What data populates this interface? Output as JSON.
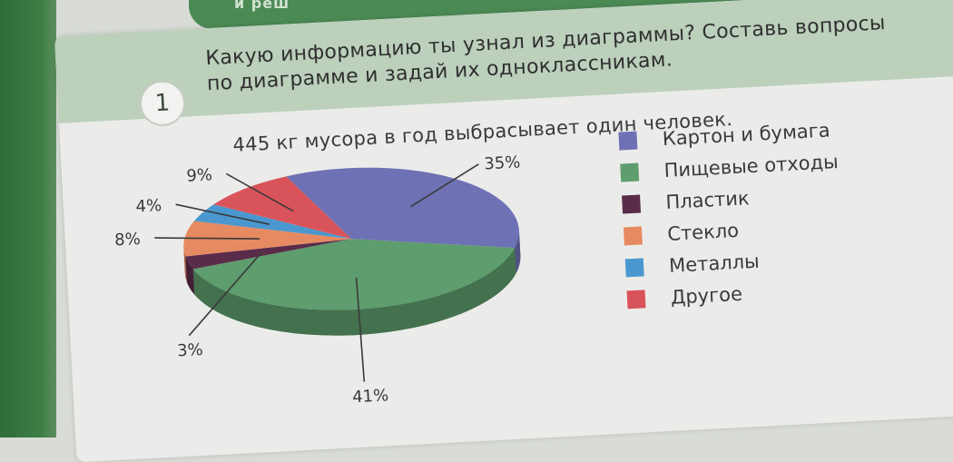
{
  "header": {
    "tab_text": "и реш"
  },
  "task": {
    "number": "1",
    "text": "Какую информацию ты узнал из диаграммы? Составь вопросы по диаграмме и задай их одноклассникам."
  },
  "chart_data": {
    "type": "pie",
    "title": "445 кг мусора в год выбрасывает один человек.",
    "legend_position": "right",
    "slices": [
      {
        "name": "Картон и бумага",
        "value": 35,
        "label": "35%",
        "color": "#6f71b5"
      },
      {
        "name": "Пищевые отходы",
        "value": 41,
        "label": "41%",
        "color": "#5e9d6d"
      },
      {
        "name": "Пластик",
        "value": 3,
        "label": "3%",
        "color": "#5a2c4a"
      },
      {
        "name": "Стекло",
        "value": 8,
        "label": "8%",
        "color": "#e68a62"
      },
      {
        "name": "Металлы",
        "value": 4,
        "label": "4%",
        "color": "#4a98cf"
      },
      {
        "name": "Другое",
        "value": 9,
        "label": "9%",
        "color": "#d9545a"
      }
    ]
  }
}
